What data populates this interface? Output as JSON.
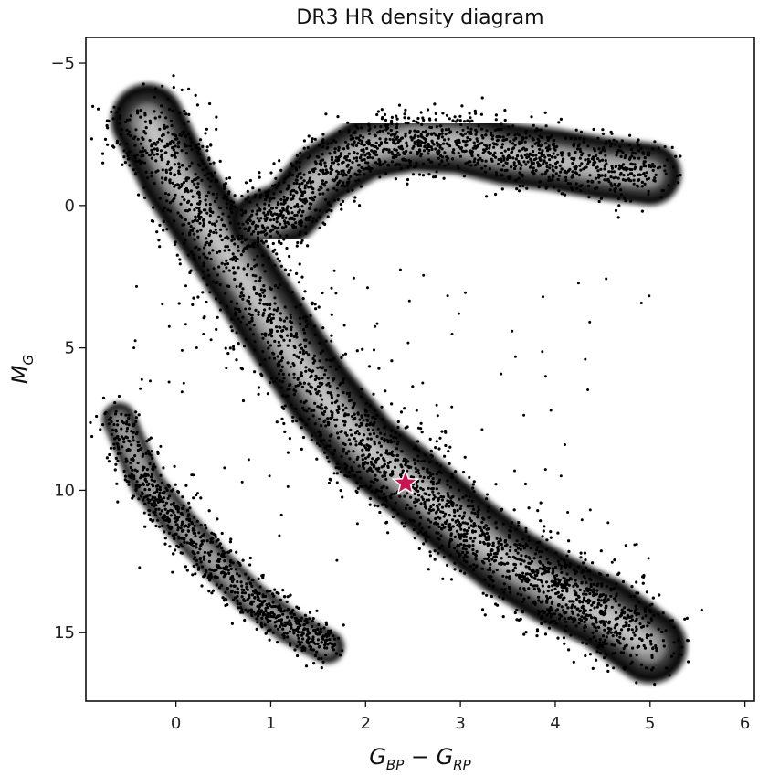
{
  "chart_data": {
    "type": "heatmap",
    "title": "DR3 HR density diagram",
    "xlabel": "G_BP − G_RP",
    "ylabel": "M_G",
    "xlim": [
      -0.95,
      6.1
    ],
    "ylim": [
      17.4,
      -5.9
    ],
    "y_inverted": true,
    "x_ticks": [
      0,
      1,
      2,
      3,
      4,
      5,
      6
    ],
    "x_tick_labels": [
      "0",
      "1",
      "2",
      "3",
      "4",
      "5",
      "6"
    ],
    "y_ticks": [
      -5,
      0,
      5,
      10,
      15
    ],
    "y_tick_labels": [
      "−5",
      "0",
      "5",
      "10",
      "15"
    ],
    "grid": false,
    "colormap": "greys (black = low density, white = high density)",
    "sequences": [
      {
        "name": "",
        "points": [
          [
            -0.3,
            -3.0
          ],
          [
            0.0,
            -1.0
          ],
          [
            0.5,
            1.5
          ],
          [
            1.0,
            4.0
          ],
          [
            1.5,
            6.5
          ],
          [
            2.0,
            8.5
          ],
          [
            2.5,
            9.8
          ],
          [
            3.0,
            11.2
          ],
          [
            3.5,
            12.5
          ],
          [
            4.0,
            13.5
          ],
          [
            4.5,
            14.3
          ],
          [
            5.0,
            15.5
          ]
        ]
      },
      {
        "name": "",
        "points": [
          [
            0.9,
            0.6
          ],
          [
            1.2,
            0.2
          ],
          [
            1.5,
            -1.0
          ],
          [
            2.0,
            -2.0
          ],
          [
            2.5,
            -2.3
          ],
          [
            3.0,
            -2.2
          ],
          [
            3.5,
            -1.8
          ],
          [
            4.0,
            -1.6
          ],
          [
            4.5,
            -1.3
          ],
          [
            5.0,
            -1.1
          ]
        ]
      },
      {
        "name": "",
        "points": [
          [
            -0.6,
            7.5
          ],
          [
            -0.3,
            9.8
          ],
          [
            0.0,
            11.0
          ],
          [
            0.4,
            12.5
          ],
          [
            0.8,
            13.8
          ],
          [
            1.2,
            14.8
          ],
          [
            1.6,
            15.5
          ]
        ]
      }
    ],
    "highlight": {
      "marker": "star",
      "x": 2.42,
      "y": 9.75,
      "color": "#c8174f"
    }
  }
}
